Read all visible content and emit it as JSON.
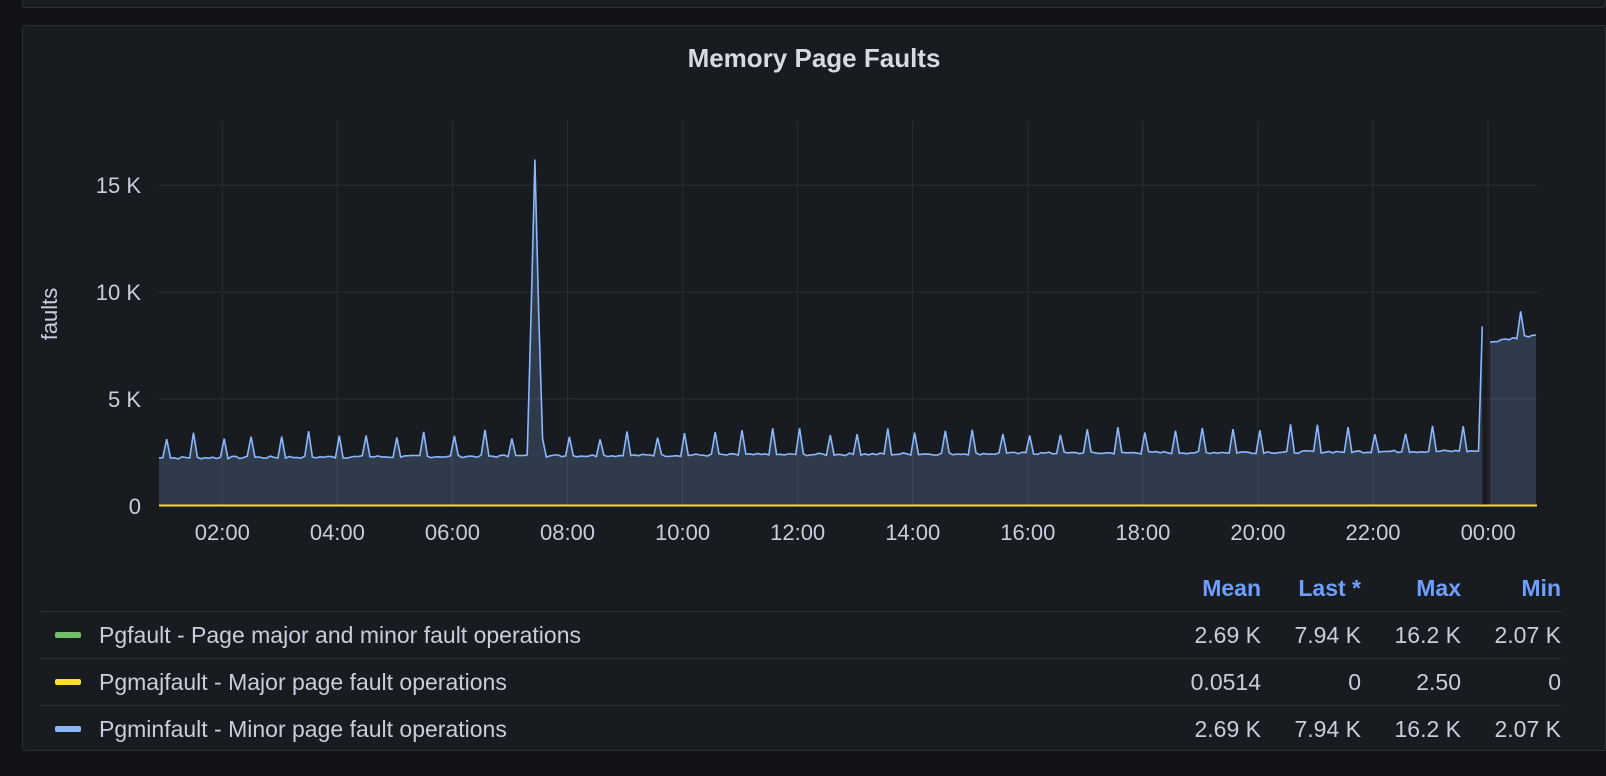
{
  "panel": {
    "title": "Memory Page Faults"
  },
  "chart_data": {
    "type": "area",
    "title": "Memory Page Faults",
    "xlabel": "",
    "ylabel": "faults",
    "x_ticks": [
      "02:00",
      "04:00",
      "06:00",
      "08:00",
      "10:00",
      "12:00",
      "14:00",
      "16:00",
      "18:00",
      "20:00",
      "22:00",
      "00:00"
    ],
    "y_ticks": [
      "0",
      "5 K",
      "10 K",
      "15 K"
    ],
    "y_tick_values": [
      0,
      5000,
      10000,
      15000
    ],
    "ylim": [
      0,
      18000
    ],
    "x_range_hours": [
      0.9,
      24.85
    ],
    "grid": true,
    "legend_position": "bottom",
    "series": [
      {
        "name": "Pgfault - Page major and minor fault operations",
        "color": "#73bf69",
        "mean": "2.69 K",
        "last": "7.94 K",
        "max": "16.2 K",
        "min": "2.07 K"
      },
      {
        "name": "Pgmajfault - Major page fault operations",
        "color": "#fade2a",
        "mean": "0.0514",
        "last": "0",
        "max": "2.50",
        "min": "0",
        "values_description": "approximately 0 throughout"
      },
      {
        "name": "Pgminfault - Minor page fault operations",
        "color": "#8ab8ff",
        "mean": "2.69 K",
        "last": "7.94 K",
        "max": "16.2 K",
        "min": "2.07 K"
      }
    ],
    "key_points": [
      {
        "x": "00:55",
        "y": 2300
      },
      {
        "x": "07:25",
        "y": 16200
      },
      {
        "x": "12:00",
        "y": 2600
      },
      {
        "x": "23:50",
        "y": 2500
      },
      {
        "x": "23:55",
        "y": 8400
      },
      {
        "x": "00:35",
        "y": 9100
      },
      {
        "x": "00:50",
        "y": 7940
      }
    ]
  },
  "legend": {
    "headers": {
      "mean": "Mean",
      "last": "Last *",
      "max": "Max",
      "min": "Min"
    }
  }
}
